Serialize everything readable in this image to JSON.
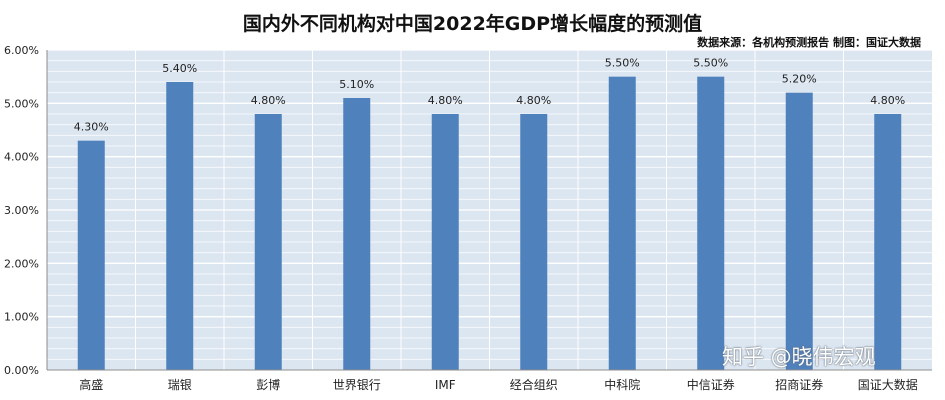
{
  "chart_data": {
    "type": "bar",
    "title": "国内外不同机构对中国2022年GDP增长幅度的预测值",
    "source_note": "数据来源：各机构预测报告   制图：国证大数据",
    "categories": [
      "高盛",
      "瑞银",
      "彭博",
      "世界银行",
      "IMF",
      "经合组织",
      "中科院",
      "中信证券",
      "招商证券",
      "国证大数据"
    ],
    "values": [
      4.3,
      5.4,
      4.8,
      5.1,
      4.8,
      4.8,
      5.5,
      5.5,
      5.2,
      4.8
    ],
    "data_labels": [
      "4.30%",
      "5.40%",
      "4.80%",
      "5.10%",
      "4.80%",
      "4.80%",
      "5.50%",
      "5.50%",
      "5.20%",
      "4.80%"
    ],
    "y_ticks": [
      "0.00%",
      "1.00%",
      "2.00%",
      "3.00%",
      "4.00%",
      "5.00%",
      "6.00%"
    ],
    "ylim": [
      0,
      6
    ],
    "xlabel": "",
    "ylabel": "",
    "grid": true,
    "legend": "none",
    "colors": {
      "bar": "#4f81bd",
      "plot_background": "#dce6f1",
      "gridline": "#ffffff",
      "vertical_divider": "#ffffff"
    }
  },
  "watermark": "知乎 @晓伟宏观"
}
